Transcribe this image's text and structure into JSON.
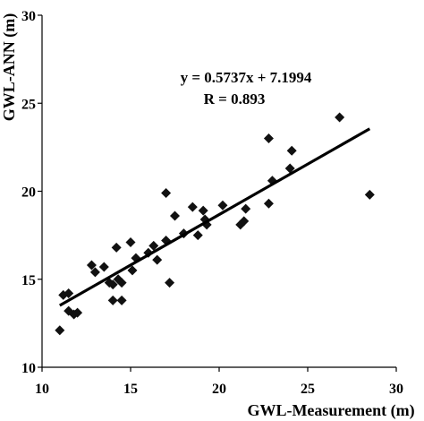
{
  "chart_data": {
    "type": "scatter",
    "xlabel": "GWL-Measurement (m)",
    "ylabel": "GWL-ANN (m)",
    "xlim": [
      10,
      30
    ],
    "ylim": [
      10,
      30
    ],
    "x_ticks": [
      "10",
      "15",
      "20",
      "25",
      "30"
    ],
    "y_ticks": [
      "10",
      "15",
      "20",
      "25",
      "30"
    ],
    "grid": false,
    "marker": "diamond",
    "marker_color": "#111111",
    "annotations": [
      "y = 0.5737x + 7.1994",
      "R = 0.893"
    ],
    "trendline": {
      "slope": 0.5737,
      "intercept": 7.1994,
      "x_start": 11.0,
      "x_end": 28.5
    },
    "points": [
      {
        "x": 11.0,
        "y": 12.1
      },
      {
        "x": 11.2,
        "y": 14.1
      },
      {
        "x": 11.5,
        "y": 14.2
      },
      {
        "x": 11.5,
        "y": 13.2
      },
      {
        "x": 11.8,
        "y": 13.0
      },
      {
        "x": 12.0,
        "y": 13.1
      },
      {
        "x": 12.8,
        "y": 15.8
      },
      {
        "x": 13.0,
        "y": 15.4
      },
      {
        "x": 13.5,
        "y": 15.7
      },
      {
        "x": 13.8,
        "y": 14.8
      },
      {
        "x": 14.0,
        "y": 14.7
      },
      {
        "x": 14.0,
        "y": 13.8
      },
      {
        "x": 14.2,
        "y": 16.8
      },
      {
        "x": 14.3,
        "y": 15.0
      },
      {
        "x": 14.5,
        "y": 14.8
      },
      {
        "x": 14.5,
        "y": 13.8
      },
      {
        "x": 15.0,
        "y": 17.1
      },
      {
        "x": 15.1,
        "y": 15.5
      },
      {
        "x": 15.3,
        "y": 16.2
      },
      {
        "x": 16.0,
        "y": 16.5
      },
      {
        "x": 16.3,
        "y": 16.9
      },
      {
        "x": 16.5,
        "y": 16.1
      },
      {
        "x": 17.0,
        "y": 19.9
      },
      {
        "x": 17.0,
        "y": 17.2
      },
      {
        "x": 17.2,
        "y": 14.8
      },
      {
        "x": 17.5,
        "y": 18.6
      },
      {
        "x": 18.0,
        "y": 17.6
      },
      {
        "x": 18.5,
        "y": 19.1
      },
      {
        "x": 18.8,
        "y": 17.5
      },
      {
        "x": 19.1,
        "y": 18.9
      },
      {
        "x": 19.2,
        "y": 18.4
      },
      {
        "x": 19.3,
        "y": 18.1
      },
      {
        "x": 20.2,
        "y": 19.2
      },
      {
        "x": 21.2,
        "y": 18.1
      },
      {
        "x": 21.4,
        "y": 18.3
      },
      {
        "x": 21.5,
        "y": 19.0
      },
      {
        "x": 22.8,
        "y": 19.3
      },
      {
        "x": 22.8,
        "y": 23.0
      },
      {
        "x": 23.0,
        "y": 20.6
      },
      {
        "x": 24.0,
        "y": 21.3
      },
      {
        "x": 24.1,
        "y": 22.3
      },
      {
        "x": 26.8,
        "y": 24.2
      },
      {
        "x": 28.5,
        "y": 19.8
      }
    ]
  }
}
